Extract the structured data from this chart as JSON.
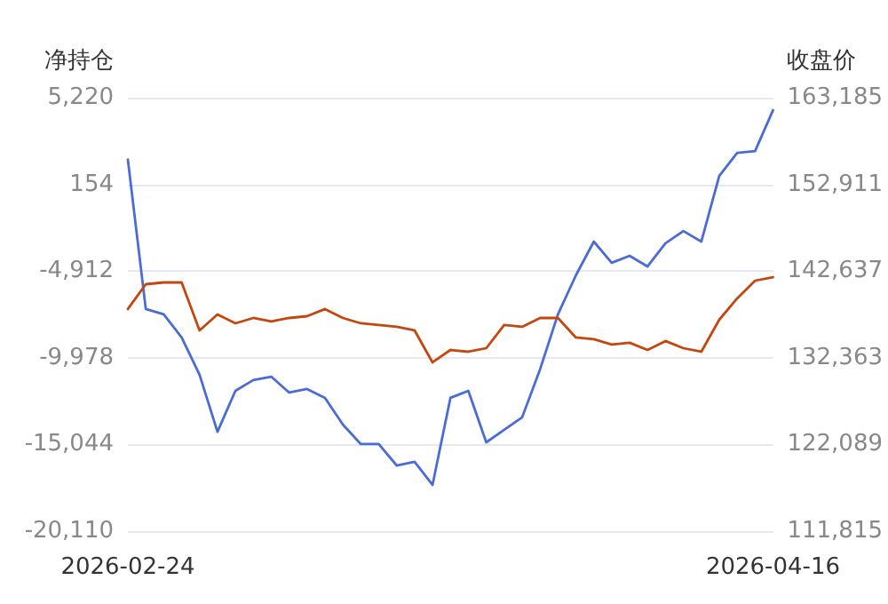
{
  "chart_data": {
    "type": "line",
    "ylabel": "净持仓",
    "y2label": "收盘价",
    "categories": [
      "2026-02-24",
      null,
      null,
      null,
      null,
      null,
      null,
      null,
      null,
      null,
      null,
      null,
      null,
      null,
      null,
      null,
      null,
      null,
      null,
      null,
      null,
      null,
      null,
      null,
      null,
      null,
      null,
      null,
      null,
      null,
      null,
      null,
      null,
      null,
      null,
      null,
      "2026-04-16"
    ],
    "series": [
      {
        "color": "#4a6cd4",
        "values": [
          1600,
          -7130,
          -7440,
          -8790,
          -10970,
          -14300,
          -11910,
          -11280,
          -11080,
          -12010,
          -11800,
          -12320,
          -13880,
          -15020,
          -15020,
          -16270,
          -16060,
          -17410,
          -12320,
          -11910,
          -14920,
          -14190,
          -13460,
          -10660,
          -7440,
          -5160,
          -3190,
          -4430,
          -4020,
          -4640,
          -3290,
          -2570,
          -3190,
          650,
          2000,
          2100,
          4490
        ]
      },
      {
        "color": "#c4470e",
        "axis": "y2",
        "values": [
          138140,
          141080,
          141290,
          141290,
          135610,
          137500,
          136450,
          137080,
          136660,
          137080,
          137290,
          138140,
          137080,
          136450,
          136240,
          136030,
          135610,
          131820,
          133290,
          133080,
          133500,
          136240,
          136030,
          137080,
          137080,
          134770,
          134560,
          133930,
          134140,
          133290,
          134350,
          133500,
          133080,
          136870,
          139400,
          141500,
          141920
        ]
      }
    ],
    "ylim": [
      -20110,
      5220
    ],
    "yticks": [
      {
        "value": -20110,
        "label": "-20,110"
      },
      {
        "value": -15044,
        "label": "-15,044"
      },
      {
        "value": -9978,
        "label": "-9,978"
      },
      {
        "value": -4912,
        "label": "-4,912"
      },
      {
        "value": 154,
        "label": "154"
      },
      {
        "value": 5220,
        "label": "5,220"
      }
    ],
    "y2lim": [
      111815,
      163185
    ],
    "y2ticks": [
      {
        "value": 111815,
        "label": "111,815"
      },
      {
        "value": 122089,
        "label": "122,089"
      },
      {
        "value": 132363,
        "label": "132,363"
      },
      {
        "value": 142637,
        "label": "142,637"
      },
      {
        "value": 152911,
        "label": "152,911"
      },
      {
        "value": 163185,
        "label": "163,185"
      }
    ],
    "grid": "y",
    "marker": "none",
    "line_style": "solid"
  }
}
